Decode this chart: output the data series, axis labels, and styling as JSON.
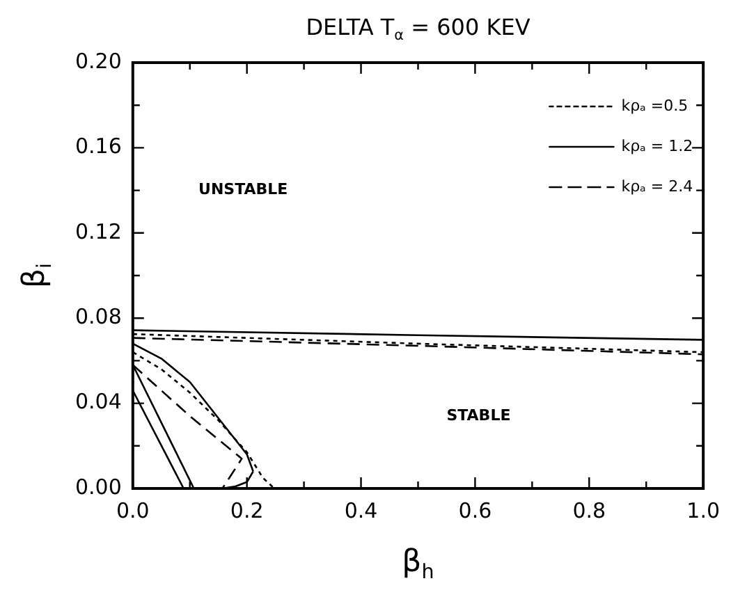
{
  "chart_data": {
    "type": "line",
    "title": "DELTA T$_{α}$ = 600 KEV",
    "xlabel": "β$_{h}$",
    "ylabel": "β$_{i}$",
    "xlim": [
      0,
      1
    ],
    "ylim": [
      0,
      0.2
    ],
    "xticks": [
      {
        "value": 0,
        "label": "0.0"
      },
      {
        "value": 0.1,
        "label": null
      },
      {
        "value": 0.2,
        "label": "0.2"
      },
      {
        "value": 0.3,
        "label": null
      },
      {
        "value": 0.4,
        "label": "0.4"
      },
      {
        "value": 0.5,
        "label": null
      },
      {
        "value": 0.6,
        "label": "0.6"
      },
      {
        "value": 0.7,
        "label": null
      },
      {
        "value": 0.8,
        "label": "0.8"
      },
      {
        "value": 0.9,
        "label": null
      },
      {
        "value": 1,
        "label": "1.0"
      }
    ],
    "yticks": [
      {
        "value": 0,
        "label": "0.00"
      },
      {
        "value": 0.02,
        "label": null
      },
      {
        "value": 0.04,
        "label": "0.04"
      },
      {
        "value": 0.06,
        "label": null
      },
      {
        "value": 0.08,
        "label": "0.08"
      },
      {
        "value": 0.1,
        "label": null
      },
      {
        "value": 0.12,
        "label": "0.12"
      },
      {
        "value": 0.14,
        "label": null
      },
      {
        "value": 0.16,
        "label": "0.16"
      },
      {
        "value": 0.18,
        "label": null
      },
      {
        "value": 0.2,
        "label": "0.20"
      }
    ],
    "grid": false,
    "legend": "top right",
    "marker": "none",
    "series": [
      {
        "name": "kρₐ =0.5",
        "color": "#000000",
        "line_style": "dotted",
        "x": [
          0,
          0.5,
          1
        ],
        "values": [
          0.0725,
          0.068,
          0.064
        ]
      },
      {
        "color": "#000000",
        "line_style": "dotted",
        "x": [
          0,
          0.05,
          0.1,
          0.15,
          0.2,
          0.228,
          0.248
        ],
        "values": [
          0.064,
          0.056,
          0.045,
          0.032,
          0.017,
          0.005,
          0
        ]
      },
      {
        "name": "kρₐ = 1.2",
        "color": "#000000",
        "line_style": "solid",
        "x": [
          0,
          0.5,
          1
        ],
        "values": [
          0.0743,
          0.072,
          0.0698
        ]
      },
      {
        "color": "#000000",
        "line_style": "solid",
        "x": [
          0,
          0.089
        ],
        "values": [
          0.046,
          0
        ]
      },
      {
        "color": "#000000",
        "line_style": "solid",
        "x": [
          0,
          0.107
        ],
        "values": [
          0.058,
          0
        ]
      },
      {
        "color": "#000000",
        "line_style": "solid",
        "x": [
          0,
          0.05,
          0.1,
          0.15,
          0.2,
          0.211
        ],
        "values": [
          0.068,
          0.061,
          0.05,
          0.033,
          0.016,
          0.008
        ]
      },
      {
        "color": "#000000",
        "line_style": "solid",
        "x": [
          0.157,
          0.18,
          0.2,
          0.211
        ],
        "values": [
          0,
          0.001,
          0.003,
          0.008
        ]
      },
      {
        "name": "kρₐ = 2.4",
        "color": "#000000",
        "line_style": "dashed",
        "x": [
          0,
          0.5,
          1
        ],
        "values": [
          0.0707,
          0.067,
          0.063
        ]
      },
      {
        "color": "#000000",
        "line_style": "dashed",
        "x": [
          0,
          0.05,
          0.1,
          0.15,
          0.191,
          0.157
        ],
        "values": [
          0.058,
          0.046,
          0.034,
          0.023,
          0.014,
          0
        ]
      }
    ],
    "annotations": [
      "UNSTABLE",
      "STABLE"
    ]
  }
}
